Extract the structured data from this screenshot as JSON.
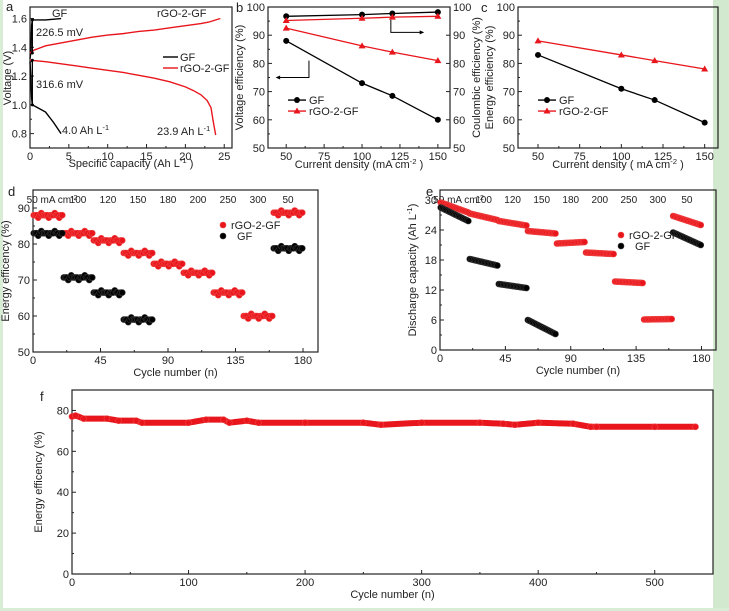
{
  "chart_data": [
    {
      "panel": "a",
      "type": "line",
      "xlabel": "Specific capacity (Ah L",
      "xlabel_sup": "-1",
      "xlabel_end": " )",
      "ylabel": "Voltage (V)",
      "xlim": [
        0,
        26
      ],
      "ylim": [
        0.7,
        1.68
      ],
      "xticks": [
        0,
        5,
        10,
        15,
        20,
        25
      ],
      "yticks": [
        0.8,
        1.0,
        1.2,
        1.4,
        1.6
      ],
      "legend": {
        "placement": "center-right",
        "entries": [
          "GF",
          "rGO-2-GF"
        ]
      },
      "series": [
        {
          "name": "GF",
          "color": "#000000",
          "curves": [
            {
              "x": [
                0,
                0.1,
                0.15,
                0.2,
                0.3,
                2.0,
                4.0
              ],
              "y": [
                1.32,
                1.36,
                1.45,
                1.55,
                1.59,
                1.59,
                1.6
              ]
            },
            {
              "x": [
                0,
                0.1,
                0.2,
                0.3,
                1.0,
                2.0,
                3.0,
                4.0
              ],
              "y": [
                1.3,
                1.2,
                1.05,
                1.0,
                0.98,
                0.95,
                0.88,
                0.8
              ]
            }
          ]
        },
        {
          "name": "rGO-2-GF",
          "color": "#e8161c",
          "curves": [
            {
              "x": [
                0,
                0.5,
                1,
                2,
                4,
                6,
                8,
                10,
                12,
                14,
                16,
                18,
                20,
                22,
                23,
                24.5
              ],
              "y": [
                1.36,
                1.38,
                1.39,
                1.41,
                1.43,
                1.45,
                1.47,
                1.485,
                1.495,
                1.51,
                1.52,
                1.535,
                1.55,
                1.565,
                1.575,
                1.6
              ]
            },
            {
              "x": [
                0,
                1,
                2,
                4,
                6,
                8,
                10,
                12,
                14,
                16,
                18,
                20,
                21,
                22,
                22.8,
                23.3,
                23.6,
                23.9
              ],
              "y": [
                1.31,
                1.305,
                1.3,
                1.285,
                1.27,
                1.255,
                1.24,
                1.225,
                1.205,
                1.185,
                1.16,
                1.125,
                1.1,
                1.07,
                1.03,
                0.98,
                0.88,
                0.79
              ]
            }
          ]
        }
      ],
      "annotations": [
        {
          "text": "GF",
          "note": "top label on GF charge curve"
        },
        {
          "text": "rGO-2-GF",
          "note": "top label on rGO-2-GF charge curve"
        },
        {
          "text": "226.5 mV"
        },
        {
          "text": "316.6 mV"
        },
        {
          "text": "4.0 Ah L",
          "sup": "-1"
        },
        {
          "text": "23.9 Ah L",
          "sup": "-1"
        }
      ]
    },
    {
      "panel": "b",
      "type": "line",
      "xlabel": "Current density (mA cm",
      "xlabel_sup": "-2",
      "xlabel_end": " )",
      "ylabel": "Voltage efficiency (%)",
      "ylabel_right": "Coulombic efficiency (%)",
      "xlim": [
        38,
        158
      ],
      "ylim": [
        50,
        100
      ],
      "ylim_right": [
        50,
        100
      ],
      "xticks": [
        50,
        75,
        100,
        125,
        150
      ],
      "yticks": [
        50,
        60,
        70,
        80,
        90,
        100
      ],
      "legend": {
        "placement": "bottom-left",
        "entries": [
          "GF",
          "rGO-2-GF"
        ]
      },
      "x": [
        50,
        100,
        120,
        150
      ],
      "series": [
        {
          "name": "GF",
          "metric": "voltage efficiency",
          "axis": "left",
          "color": "#000000",
          "marker": "diamond",
          "values": [
            88,
            73,
            68.5,
            60
          ]
        },
        {
          "name": "rGO-2-GF",
          "metric": "voltage efficiency",
          "axis": "left",
          "color": "#e8161c",
          "marker": "triangle",
          "values": [
            92.5,
            86.2,
            84,
            81
          ]
        },
        {
          "name": "GF",
          "metric": "coulombic efficiency",
          "axis": "right",
          "color": "#000000",
          "marker": "diamond",
          "values": [
            96.7,
            97.3,
            97.7,
            98.2
          ]
        },
        {
          "name": "rGO-2-GF",
          "metric": "coulombic efficiency",
          "axis": "right",
          "color": "#e8161c",
          "marker": "triangle",
          "values": [
            95.2,
            96,
            96.4,
            96.7
          ]
        }
      ]
    },
    {
      "panel": "c",
      "type": "line",
      "xlabel": "Current density ( mA cm",
      "xlabel_sup": "-2",
      "xlabel_end": " )",
      "ylabel": "Energy efficiency (%)",
      "xlim": [
        38,
        158
      ],
      "ylim": [
        50,
        100
      ],
      "xticks": [
        50,
        75,
        100,
        125,
        150
      ],
      "yticks": [
        50,
        60,
        70,
        80,
        90,
        100
      ],
      "legend": {
        "placement": "bottom-left",
        "entries": [
          "GF",
          "rGO-2-GF"
        ]
      },
      "x": [
        50,
        100,
        120,
        150
      ],
      "series": [
        {
          "name": "GF",
          "color": "#000000",
          "marker": "diamond",
          "values": [
            83,
            71,
            67,
            59
          ]
        },
        {
          "name": "rGO-2-GF",
          "color": "#e8161c",
          "marker": "triangle",
          "values": [
            88,
            83,
            81,
            78
          ]
        }
      ]
    },
    {
      "panel": "d",
      "type": "scatter",
      "xlabel": "Cycle number (n)",
      "ylabel": "Energy efficency (%)",
      "xlim": [
        0,
        190
      ],
      "ylim": [
        50,
        95
      ],
      "xticks": [
        0,
        45,
        90,
        135,
        180
      ],
      "yticks": [
        50,
        60,
        70,
        80,
        90
      ],
      "legend": {
        "placement": "top-right",
        "entries": [
          "rGO-2-GF",
          "GF"
        ]
      },
      "rate_labels": [
        "50 mA cm",
        "100",
        "120",
        "150",
        "180",
        "200",
        "250",
        "300",
        "50"
      ],
      "rate_label_sup": "-2",
      "segments_note": "20 cycles per current density step",
      "series": [
        {
          "name": "rGO-2-GF",
          "color": "#e8161c",
          "segment_values": [
            88,
            83,
            81,
            77.5,
            74.5,
            72,
            66.5,
            60,
            88.7
          ]
        },
        {
          "name": "GF",
          "color": "#000000",
          "segment_values": [
            83,
            70.7,
            66.5,
            59,
            null,
            null,
            null,
            null,
            78.8
          ]
        }
      ]
    },
    {
      "panel": "e",
      "type": "scatter",
      "xlabel": "Cycle number (n)",
      "ylabel": "Discharge capacity (Ah L",
      "ylabel_sup": "-1",
      "ylabel_end": ")",
      "xlim": [
        0,
        190
      ],
      "ylim": [
        0,
        32
      ],
      "xticks": [
        0,
        45,
        90,
        135,
        180
      ],
      "yticks": [
        0,
        6,
        12,
        18,
        24,
        30
      ],
      "legend": {
        "placement": "top-right",
        "entries": [
          "rGO-2-GF",
          "GF"
        ]
      },
      "rate_labels": [
        "50 mA cm",
        "100",
        "120",
        "150",
        "180",
        "200",
        "250",
        "300",
        "50"
      ],
      "rate_label_sup": "-2",
      "series": [
        {
          "name": "rGO-2-GF",
          "color": "#e8161c",
          "segment_ranges": [
            [
              29.5,
              27.5
            ],
            [
              27.3,
              26.0
            ],
            [
              25.8,
              24.9
            ],
            [
              23.8,
              23.3
            ],
            [
              21.3,
              21.6
            ],
            [
              19.5,
              19.2
            ],
            [
              13.7,
              13.4
            ],
            [
              6.1,
              6.2
            ],
            [
              26.8,
              25.0
            ]
          ]
        },
        {
          "name": "GF",
          "color": "#000000",
          "segment_ranges": [
            [
              28.5,
              25.8
            ],
            [
              18.2,
              16.9
            ],
            [
              13.2,
              12.4
            ],
            [
              6.0,
              3.2
            ],
            null,
            null,
            null,
            null,
            [
              23.5,
              21.0
            ]
          ]
        }
      ]
    },
    {
      "panel": "f",
      "type": "scatter",
      "xlabel": "Cycle number (n)",
      "ylabel": "Energy efficency (%)",
      "xlim": [
        0,
        550
      ],
      "ylim": [
        0,
        90
      ],
      "xticks": [
        0,
        100,
        200,
        300,
        400,
        500
      ],
      "yticks": [
        0,
        20,
        40,
        60,
        80
      ],
      "series": [
        {
          "name": "rGO-2-GF",
          "color": "#e8161c",
          "x": [
            0,
            3,
            10,
            30,
            40,
            55,
            60,
            100,
            115,
            130,
            135,
            150,
            160,
            200,
            250,
            265,
            300,
            350,
            370,
            380,
            400,
            430,
            445,
            450,
            500,
            535
          ],
          "y": [
            77,
            77.5,
            76,
            76,
            75,
            75,
            74,
            74,
            75.5,
            75.5,
            74,
            75,
            74,
            74,
            74,
            73,
            74,
            74,
            73.5,
            73,
            74,
            73.5,
            72,
            72,
            72,
            72
          ]
        }
      ]
    }
  ],
  "panel_letters": [
    "a",
    "b",
    "c",
    "d",
    "e",
    "f"
  ]
}
